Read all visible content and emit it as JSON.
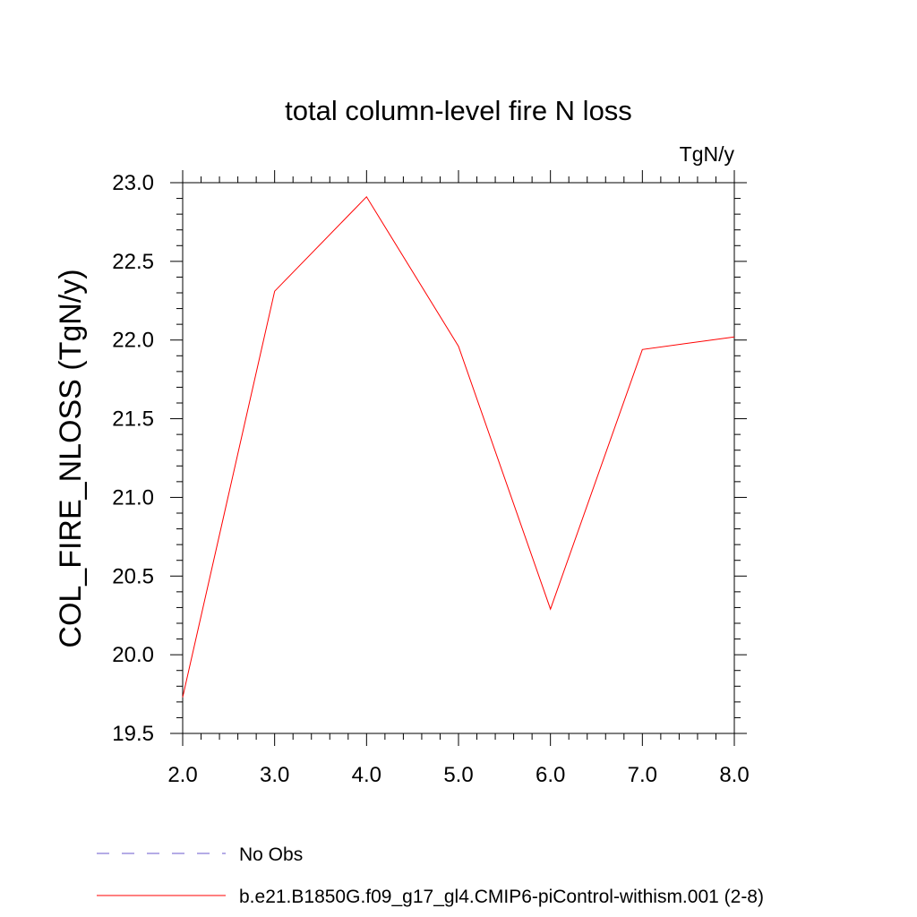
{
  "chart_data": {
    "type": "line",
    "title": "total column-level fire N loss",
    "units_label": "TgN/y",
    "xlabel": "",
    "ylabel": "COL_FIRE_NLOSS  (TgN/y)",
    "xlim": [
      2.0,
      8.0
    ],
    "ylim": [
      19.5,
      23.0
    ],
    "x_ticks": [
      "2.0",
      "3.0",
      "4.0",
      "5.0",
      "6.0",
      "7.0",
      "8.0"
    ],
    "y_ticks": [
      "19.5",
      "20.0",
      "20.5",
      "21.0",
      "21.5",
      "22.0",
      "22.5",
      "23.0"
    ],
    "grid": false,
    "legend_position": "bottom",
    "series": [
      {
        "name": "b.e21.B1850G.f09_g17_gl4.CMIP6-piControl-withism.001 (2-8)",
        "color": "#ff0000",
        "style": "solid",
        "x": [
          2,
          3,
          4,
          5,
          6,
          7,
          8
        ],
        "values": [
          19.73,
          22.31,
          22.91,
          21.96,
          20.29,
          21.94,
          22.02
        ]
      },
      {
        "name": "No Obs",
        "color": "#6a5acd",
        "style": "dashed",
        "x": [],
        "values": []
      }
    ]
  }
}
